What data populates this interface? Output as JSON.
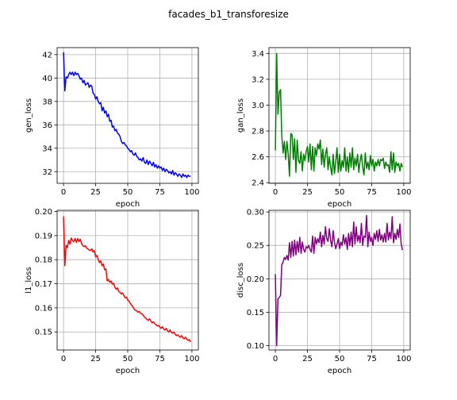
{
  "figure": {
    "title": "facades_b1_transforesize"
  },
  "chart_data": [
    {
      "type": "line",
      "xlabel": "epoch",
      "ylabel": "gen_loss",
      "xlim": [
        -5,
        105
      ],
      "ylim": [
        31,
        42.6
      ],
      "xticks": [
        0,
        25,
        50,
        75,
        100
      ],
      "yticks": [
        32,
        34,
        36,
        38,
        40,
        42
      ],
      "grid": true,
      "series": [
        {
          "color": "#0000ff",
          "x": [
            0,
            1,
            2,
            3,
            4,
            5,
            6,
            7,
            8,
            9,
            10,
            11,
            12,
            13,
            14,
            15,
            16,
            17,
            18,
            19,
            20,
            21,
            22,
            23,
            24,
            25,
            26,
            27,
            28,
            29,
            30,
            31,
            32,
            33,
            34,
            35,
            36,
            37,
            38,
            39,
            40,
            41,
            42,
            43,
            44,
            45,
            46,
            47,
            48,
            49,
            50,
            51,
            52,
            53,
            54,
            55,
            56,
            57,
            58,
            59,
            60,
            61,
            62,
            63,
            64,
            65,
            66,
            67,
            68,
            69,
            70,
            71,
            72,
            73,
            74,
            75,
            76,
            77,
            78,
            79,
            80,
            81,
            82,
            83,
            84,
            85,
            86,
            87,
            88,
            89,
            90,
            91,
            92,
            93,
            94,
            95,
            96,
            97,
            98,
            99
          ],
          "y": [
            42.2,
            38.9,
            40.1,
            40.0,
            40.3,
            40.5,
            40.3,
            40.5,
            40.2,
            40.5,
            40.3,
            40.4,
            40.2,
            39.9,
            40.0,
            39.6,
            39.8,
            39.4,
            39.5,
            39.6,
            39.2,
            39.4,
            39.3,
            38.7,
            38.6,
            38.2,
            38.4,
            38.0,
            37.8,
            37.9,
            37.2,
            37.5,
            37.0,
            37.2,
            36.7,
            36.9,
            36.3,
            36.4,
            35.8,
            35.9,
            35.5,
            35.6,
            35.3,
            35.2,
            35.0,
            34.6,
            34.4,
            34.5,
            34.3,
            34.2,
            34.0,
            33.9,
            33.7,
            33.8,
            33.5,
            33.4,
            33.6,
            33.3,
            33.2,
            33.0,
            33.1,
            32.9,
            33.2,
            32.8,
            32.7,
            33.0,
            32.6,
            32.9,
            32.7,
            32.5,
            32.8,
            32.4,
            32.6,
            32.3,
            32.5,
            32.3,
            32.4,
            32.1,
            32.3,
            32.0,
            32.2,
            32.1,
            31.9,
            32.0,
            31.8,
            32.1,
            31.7,
            31.9,
            31.8,
            31.6,
            31.8,
            31.7,
            31.5,
            31.8,
            31.6,
            31.7,
            31.5,
            31.7,
            31.6,
            31.6
          ]
        }
      ]
    },
    {
      "type": "line",
      "xlabel": "epoch",
      "ylabel": "gan_loss",
      "xlim": [
        -5,
        105
      ],
      "ylim": [
        2.395,
        3.445
      ],
      "xticks": [
        0,
        25,
        50,
        75,
        100
      ],
      "yticks": [
        2.4,
        2.6,
        2.8,
        3.0,
        3.2,
        3.4
      ],
      "grid": true,
      "series": [
        {
          "color": "#008000",
          "x": [
            0,
            1,
            2,
            3,
            4,
            5,
            6,
            7,
            8,
            9,
            10,
            11,
            12,
            13,
            14,
            15,
            16,
            17,
            18,
            19,
            20,
            21,
            22,
            23,
            24,
            25,
            26,
            27,
            28,
            29,
            30,
            31,
            32,
            33,
            34,
            35,
            36,
            37,
            38,
            39,
            40,
            41,
            42,
            43,
            44,
            45,
            46,
            47,
            48,
            49,
            50,
            51,
            52,
            53,
            54,
            55,
            56,
            57,
            58,
            59,
            60,
            61,
            62,
            63,
            64,
            65,
            66,
            67,
            68,
            69,
            70,
            71,
            72,
            73,
            74,
            75,
            76,
            77,
            78,
            79,
            80,
            81,
            82,
            83,
            84,
            85,
            86,
            87,
            88,
            89,
            90,
            91,
            92,
            93,
            94,
            95,
            96,
            97,
            98,
            99
          ],
          "y": [
            2.65,
            3.4,
            2.93,
            3.1,
            3.12,
            2.76,
            2.63,
            2.72,
            2.58,
            2.72,
            2.62,
            2.45,
            2.78,
            2.77,
            2.58,
            2.74,
            2.48,
            2.73,
            2.57,
            2.55,
            2.64,
            2.49,
            2.62,
            2.57,
            2.64,
            2.68,
            2.56,
            2.7,
            2.5,
            2.68,
            2.49,
            2.67,
            2.61,
            2.7,
            2.66,
            2.73,
            2.54,
            2.66,
            2.52,
            2.62,
            2.67,
            2.5,
            2.6,
            2.52,
            2.46,
            2.62,
            2.47,
            2.56,
            2.67,
            2.48,
            2.62,
            2.49,
            2.57,
            2.52,
            2.67,
            2.49,
            2.6,
            2.48,
            2.63,
            2.52,
            2.67,
            2.5,
            2.59,
            2.53,
            2.62,
            2.48,
            2.57,
            2.62,
            2.52,
            2.46,
            2.63,
            2.51,
            2.56,
            2.5,
            2.61,
            2.53,
            2.58,
            2.49,
            2.56,
            2.53,
            2.58,
            2.53,
            2.58,
            2.57,
            2.59,
            2.51,
            2.56,
            2.53,
            2.54,
            2.48,
            2.64,
            2.5,
            2.63,
            2.48,
            2.56,
            2.53,
            2.55,
            2.49,
            2.55,
            2.52
          ]
        }
      ]
    },
    {
      "type": "line",
      "xlabel": "epoch",
      "ylabel": "l1_loss",
      "xlim": [
        -5,
        105
      ],
      "ylim": [
        0.1425,
        0.2005
      ],
      "xticks": [
        0,
        25,
        50,
        75,
        100
      ],
      "yticks": [
        0.15,
        0.16,
        0.17,
        0.18,
        0.19,
        0.2
      ],
      "grid": true,
      "series": [
        {
          "color": "#ff0000",
          "x": [
            0,
            1,
            2,
            3,
            4,
            5,
            6,
            7,
            8,
            9,
            10,
            11,
            12,
            13,
            14,
            15,
            16,
            17,
            18,
            19,
            20,
            21,
            22,
            23,
            24,
            25,
            26,
            27,
            28,
            29,
            30,
            31,
            32,
            33,
            34,
            35,
            36,
            37,
            38,
            39,
            40,
            41,
            42,
            43,
            44,
            45,
            46,
            47,
            48,
            49,
            50,
            51,
            52,
            53,
            54,
            55,
            56,
            57,
            58,
            59,
            60,
            61,
            62,
            63,
            64,
            65,
            66,
            67,
            68,
            69,
            70,
            71,
            72,
            73,
            74,
            75,
            76,
            77,
            78,
            79,
            80,
            81,
            82,
            83,
            84,
            85,
            86,
            87,
            88,
            89,
            90,
            91,
            92,
            93,
            94,
            95,
            96,
            97,
            98,
            99
          ],
          "y": [
            0.198,
            0.1775,
            0.186,
            0.185,
            0.188,
            0.1865,
            0.189,
            0.188,
            0.1875,
            0.1888,
            0.1872,
            0.1888,
            0.1875,
            0.1885,
            0.1868,
            0.1858,
            0.1855,
            0.1858,
            0.1848,
            0.1845,
            0.184,
            0.1838,
            0.1845,
            0.1832,
            0.1838,
            0.1812,
            0.1818,
            0.1802,
            0.1788,
            0.1795,
            0.1775,
            0.1782,
            0.1758,
            0.1762,
            0.1712,
            0.1718,
            0.1706,
            0.1712,
            0.1698,
            0.1702,
            0.1685,
            0.1678,
            0.1683,
            0.1668,
            0.1665,
            0.1658,
            0.1662,
            0.1652,
            0.1642,
            0.1645,
            0.1632,
            0.1628,
            0.1618,
            0.1612,
            0.1605,
            0.1595,
            0.159,
            0.1588,
            0.1582,
            0.1585,
            0.1578,
            0.1575,
            0.157,
            0.1562,
            0.1558,
            0.1552,
            0.1548,
            0.1555,
            0.1545,
            0.1538,
            0.1542,
            0.1535,
            0.153,
            0.1525,
            0.1528,
            0.152,
            0.1515,
            0.1522,
            0.1512,
            0.1508,
            0.1515,
            0.1505,
            0.15,
            0.1508,
            0.1498,
            0.1495,
            0.15,
            0.149,
            0.1485,
            0.1488,
            0.1482,
            0.1478,
            0.1485,
            0.1475,
            0.1472,
            0.1478,
            0.147,
            0.1465,
            0.1468,
            0.1458
          ]
        }
      ]
    },
    {
      "type": "line",
      "xlabel": "epoch",
      "ylabel": "disc_loss",
      "xlim": [
        -5,
        105
      ],
      "ylim": [
        0.0935,
        0.3025
      ],
      "xticks": [
        0,
        25,
        50,
        75,
        100
      ],
      "yticks": [
        0.1,
        0.15,
        0.2,
        0.25,
        0.3
      ],
      "grid": true,
      "series": [
        {
          "color": "#800080",
          "x": [
            0,
            1,
            2,
            3,
            4,
            5,
            6,
            7,
            8,
            9,
            10,
            11,
            12,
            13,
            14,
            15,
            16,
            17,
            18,
            19,
            20,
            21,
            22,
            23,
            24,
            25,
            26,
            27,
            28,
            29,
            30,
            31,
            32,
            33,
            34,
            35,
            36,
            37,
            38,
            39,
            40,
            41,
            42,
            43,
            44,
            45,
            46,
            47,
            48,
            49,
            50,
            51,
            52,
            53,
            54,
            55,
            56,
            57,
            58,
            59,
            60,
            61,
            62,
            63,
            64,
            65,
            66,
            67,
            68,
            69,
            70,
            71,
            72,
            73,
            74,
            75,
            76,
            77,
            78,
            79,
            80,
            81,
            82,
            83,
            84,
            85,
            86,
            87,
            88,
            89,
            90,
            91,
            92,
            93,
            94,
            95,
            96,
            97,
            98,
            99
          ],
          "y": [
            0.207,
            0.1,
            0.17,
            0.172,
            0.175,
            0.221,
            0.225,
            0.232,
            0.229,
            0.235,
            0.228,
            0.254,
            0.232,
            0.256,
            0.234,
            0.258,
            0.236,
            0.256,
            0.24,
            0.262,
            0.238,
            0.255,
            0.244,
            0.24,
            0.248,
            0.246,
            0.25,
            0.244,
            0.24,
            0.264,
            0.238,
            0.262,
            0.252,
            0.26,
            0.254,
            0.27,
            0.248,
            0.265,
            0.252,
            0.278,
            0.26,
            0.256,
            0.275,
            0.258,
            0.248,
            0.272,
            0.255,
            0.245,
            0.252,
            0.26,
            0.245,
            0.255,
            0.25,
            0.266,
            0.252,
            0.262,
            0.244,
            0.268,
            0.25,
            0.27,
            0.248,
            0.285,
            0.252,
            0.278,
            0.256,
            0.265,
            0.254,
            0.283,
            0.25,
            0.264,
            0.262,
            0.295,
            0.248,
            0.27,
            0.256,
            0.262,
            0.25,
            0.268,
            0.259,
            0.272,
            0.256,
            0.274,
            0.258,
            0.266,
            0.255,
            0.268,
            0.255,
            0.283,
            0.258,
            0.27,
            0.26,
            0.293,
            0.254,
            0.268,
            0.259,
            0.274,
            0.262,
            0.282,
            0.252,
            0.243
          ]
        }
      ]
    }
  ]
}
